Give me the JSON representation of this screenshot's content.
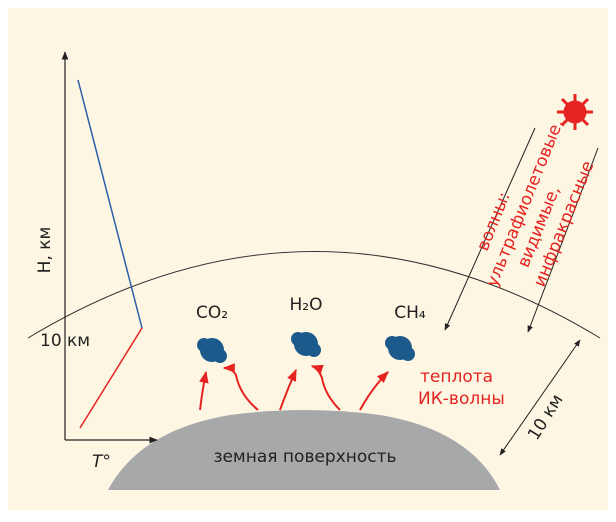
{
  "axis": {
    "y_label": "H, км",
    "y_mark": "10 км",
    "x_label": "T°"
  },
  "molecules": [
    {
      "label": "CO₂"
    },
    {
      "label": "H₂O"
    },
    {
      "label": "CH₄"
    }
  ],
  "heat": {
    "line1": "теплота",
    "line2": "ИК-волны"
  },
  "radiation": {
    "line1": "волны:",
    "line2": "ультрафиолетовые,",
    "line3": "видимые,",
    "line4": "инфракрасные"
  },
  "thickness": "10 км",
  "surface": "земная поверхность"
}
